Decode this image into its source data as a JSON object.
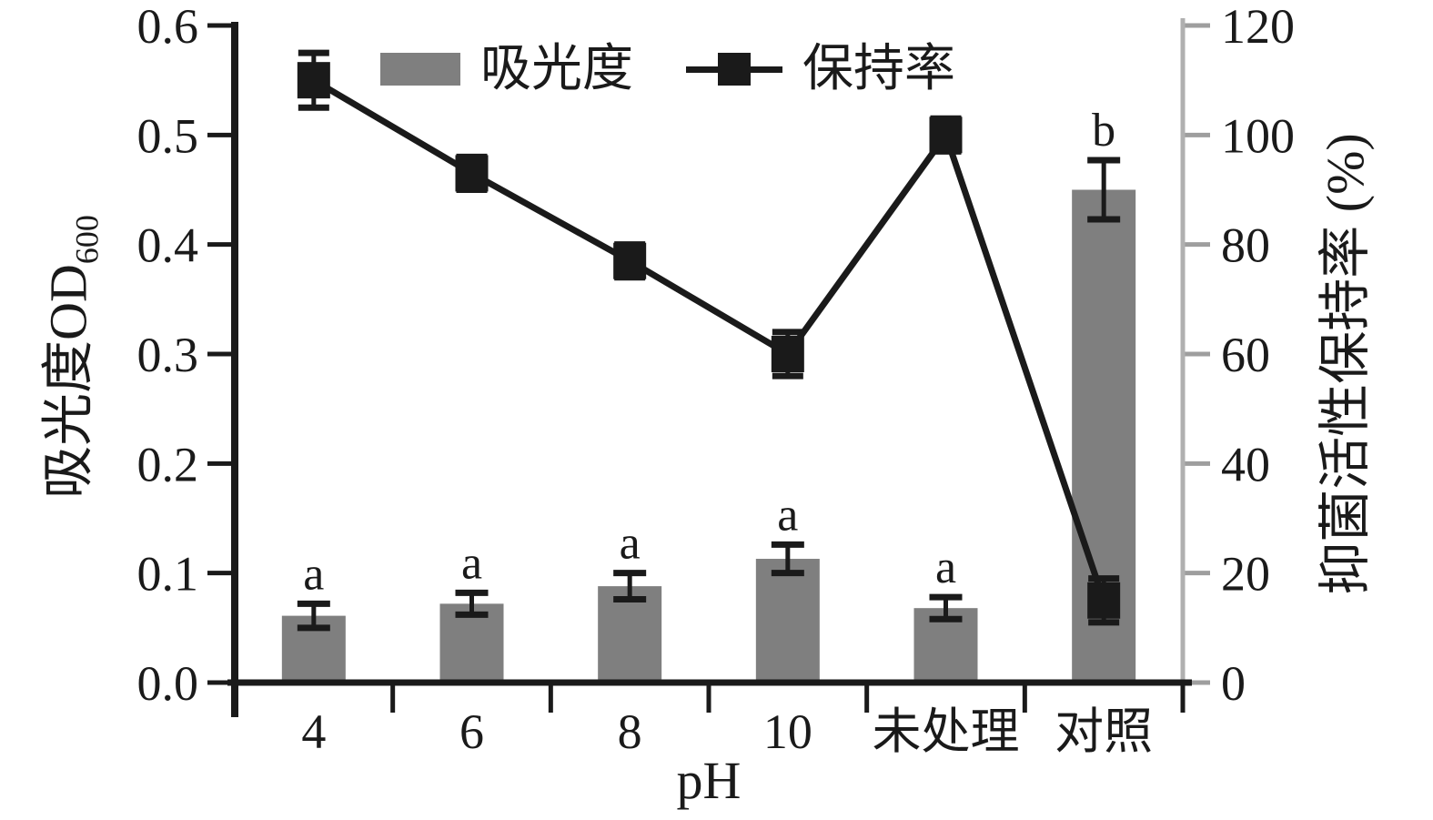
{
  "chart_data": {
    "type": "bar+line",
    "subtype": "dual-axis category chart with error bars and significance letters",
    "categories": [
      "4",
      "6",
      "8",
      "10",
      "未处理",
      "对照"
    ],
    "xlabel": "pH",
    "left_axis": {
      "label_main": "吸光度OD",
      "label_sub": "600",
      "min": 0,
      "max": 0.6,
      "step": 0.1,
      "tick_labels": [
        "0.0",
        "0.1",
        "0.2",
        "0.3",
        "0.4",
        "0.5",
        "0.6"
      ]
    },
    "right_axis": {
      "label": "抑菌活性保持率 (%)",
      "min": 0,
      "max": 120,
      "step": 20,
      "tick_labels": [
        "0",
        "20",
        "40",
        "60",
        "80",
        "100",
        "120"
      ]
    },
    "series": [
      {
        "name": "吸光度",
        "type": "bar",
        "axis": "left",
        "color": "#7f7f7f",
        "values": [
          0.061,
          0.072,
          0.088,
          0.113,
          0.068,
          0.45
        ],
        "errors": [
          0.011,
          0.01,
          0.012,
          0.013,
          0.01,
          0.027
        ],
        "sig_letters": [
          "a",
          "a",
          "a",
          "a",
          "a",
          "b"
        ]
      },
      {
        "name": "保持率",
        "type": "line",
        "axis": "right",
        "color": "#1a1a1a",
        "marker": "square",
        "values": [
          110,
          93,
          77,
          60,
          100,
          15
        ],
        "errors": [
          5,
          3,
          3,
          4,
          3,
          4
        ]
      }
    ],
    "legend_position": "top-inside",
    "grid": false
  },
  "colors": {
    "bar": "#7f7f7f",
    "line": "#1a1a1a",
    "axis": "#1a1a1a",
    "right_axis": "#b0b0b0",
    "right_tick": "#9e9e9e",
    "background": "#ffffff"
  }
}
